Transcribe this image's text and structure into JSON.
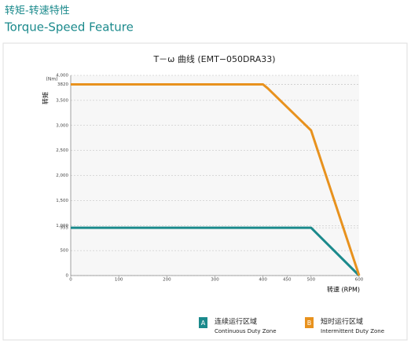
{
  "header": {
    "title": "转矩-转速特性",
    "subtitle": "Torque-Speed Feature"
  },
  "chart_data": {
    "type": "line",
    "title": "T－ω 曲线 (EMT−050DRA33)",
    "ylabel": "转矩",
    "yunit": "(Nm)",
    "xlabel": "转速 (RPM)",
    "xlim": [
      0,
      600
    ],
    "xticks": [
      0,
      100,
      200,
      300,
      400,
      450,
      500,
      600
    ],
    "ylim": [
      0,
      4000
    ],
    "yticks": [
      0,
      500,
      955,
      {
        "value": 1000,
        "label": "1,000"
      },
      {
        "value": 1500,
        "label": "1,500"
      },
      {
        "value": 2000,
        "label": "2,000"
      },
      {
        "value": 2500,
        "label": "2,500"
      },
      {
        "value": 3000,
        "label": "3,000"
      },
      {
        "value": 3500,
        "label": "3,500"
      },
      3820,
      {
        "value": 4000,
        "label": "4,000"
      }
    ],
    "grid": true,
    "series": [
      {
        "name": "连续运行区域",
        "name_en": "Continuous Duty Zone",
        "badge": "A",
        "color": "#1b8a8c",
        "x": [
          0,
          500,
          600
        ],
        "values": [
          955,
          955,
          0
        ]
      },
      {
        "name": "短时运行区域",
        "name_en": "Intermittent Duty Zone",
        "badge": "B",
        "color": "#e8921e",
        "x": [
          0,
          400,
          410,
          500,
          600
        ],
        "values": [
          3820,
          3820,
          3740,
          2900,
          0
        ]
      }
    ]
  }
}
